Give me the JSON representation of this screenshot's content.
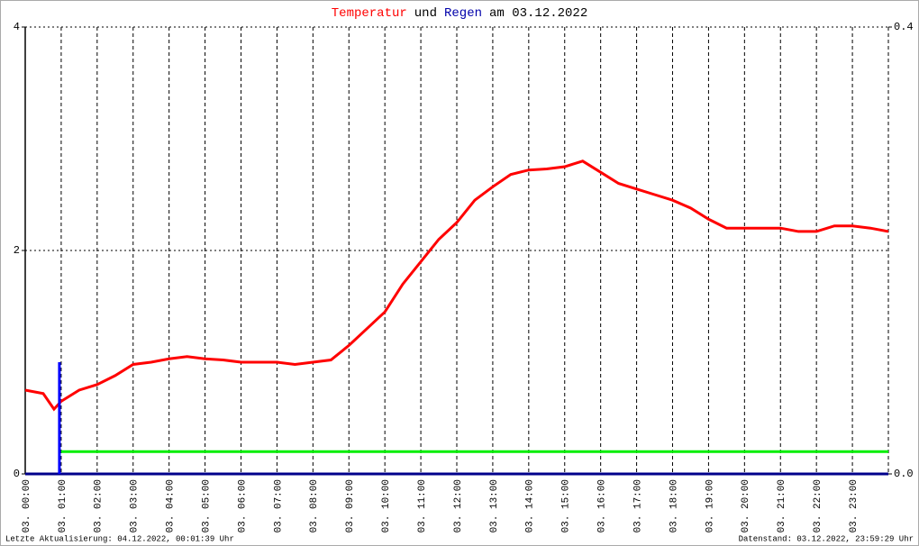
{
  "chart_data": {
    "type": "line",
    "title_parts": [
      {
        "text": "Temperatur",
        "color": "#ff0000"
      },
      {
        "text": "und",
        "color": "#000000"
      },
      {
        "text": "Regen",
        "color": "#0000aa"
      },
      {
        "text": "am 03.12.2022",
        "color": "#000000"
      }
    ],
    "xlim": [
      0,
      24
    ],
    "xticks": [
      {
        "value": 0,
        "label": "03. 00:00"
      },
      {
        "value": 1,
        "label": "03. 01:00"
      },
      {
        "value": 2,
        "label": "03. 02:00"
      },
      {
        "value": 3,
        "label": "03. 03:00"
      },
      {
        "value": 4,
        "label": "03. 04:00"
      },
      {
        "value": 5,
        "label": "03. 05:00"
      },
      {
        "value": 6,
        "label": "03. 06:00"
      },
      {
        "value": 7,
        "label": "03. 07:00"
      },
      {
        "value": 8,
        "label": "03. 08:00"
      },
      {
        "value": 9,
        "label": "03. 09:00"
      },
      {
        "value": 10,
        "label": "03. 10:00"
      },
      {
        "value": 11,
        "label": "03. 11:00"
      },
      {
        "value": 12,
        "label": "03. 12:00"
      },
      {
        "value": 13,
        "label": "03. 13:00"
      },
      {
        "value": 14,
        "label": "03. 14:00"
      },
      {
        "value": 15,
        "label": "03. 15:00"
      },
      {
        "value": 16,
        "label": "03. 16:00"
      },
      {
        "value": 17,
        "label": "03. 17:00"
      },
      {
        "value": 18,
        "label": "03. 18:00"
      },
      {
        "value": 19,
        "label": "03. 19:00"
      },
      {
        "value": 20,
        "label": "03. 20:00"
      },
      {
        "value": 21,
        "label": "03. 21:00"
      },
      {
        "value": 22,
        "label": "03. 22:00"
      },
      {
        "value": 23,
        "label": "03. 23:00"
      }
    ],
    "ylim": [
      0,
      4
    ],
    "yticks": [
      0,
      2,
      4
    ],
    "y2lim": [
      0,
      0.4
    ],
    "y2ticks": [
      {
        "value": 0,
        "label": "0.0"
      },
      0.4
    ],
    "grid": true,
    "series": [
      {
        "kind": "line",
        "color": "#ff0000",
        "x": [
          0,
          0.5,
          0.8,
          1,
          1.5,
          2,
          2.5,
          3,
          3.5,
          4,
          4.5,
          5,
          5.5,
          6,
          6.5,
          7,
          7.5,
          8,
          8.5,
          9,
          9.5,
          10,
          10.5,
          11,
          11.5,
          12,
          12.5,
          13,
          13.5,
          14,
          14.5,
          15,
          15.5,
          16,
          16.5,
          17,
          17.5,
          18,
          18.5,
          19,
          19.5,
          20,
          20.5,
          21,
          21.5,
          22,
          22.5,
          23,
          23.5,
          24
        ],
        "values": [
          0.75,
          0.72,
          0.58,
          0.65,
          0.75,
          0.8,
          0.88,
          0.98,
          1.0,
          1.03,
          1.05,
          1.03,
          1.02,
          1.0,
          1.0,
          1.0,
          0.98,
          1.0,
          1.02,
          1.15,
          1.3,
          1.45,
          1.7,
          1.9,
          2.1,
          2.25,
          2.45,
          2.57,
          2.68,
          2.72,
          2.73,
          2.75,
          2.8,
          2.7,
          2.6,
          2.55,
          2.5,
          2.45,
          2.38,
          2.28,
          2.2,
          2.2,
          2.2,
          2.2,
          2.17,
          2.17,
          2.22,
          2.22,
          2.2,
          2.17
        ]
      },
      {
        "kind": "bar",
        "color": "#0000ff",
        "axis": "y2",
        "x": [
          0.95
        ],
        "values": [
          0.1
        ]
      },
      {
        "kind": "line",
        "color": "#00ee00",
        "x": [
          1,
          24
        ],
        "values": [
          0.2,
          0.2
        ]
      }
    ],
    "footer_left": "Letzte Aktualisierung: 04.12.2022, 00:01:39 Uhr",
    "footer_right": "Datenstand: 03.12.2022, 23:59:29 Uhr"
  }
}
